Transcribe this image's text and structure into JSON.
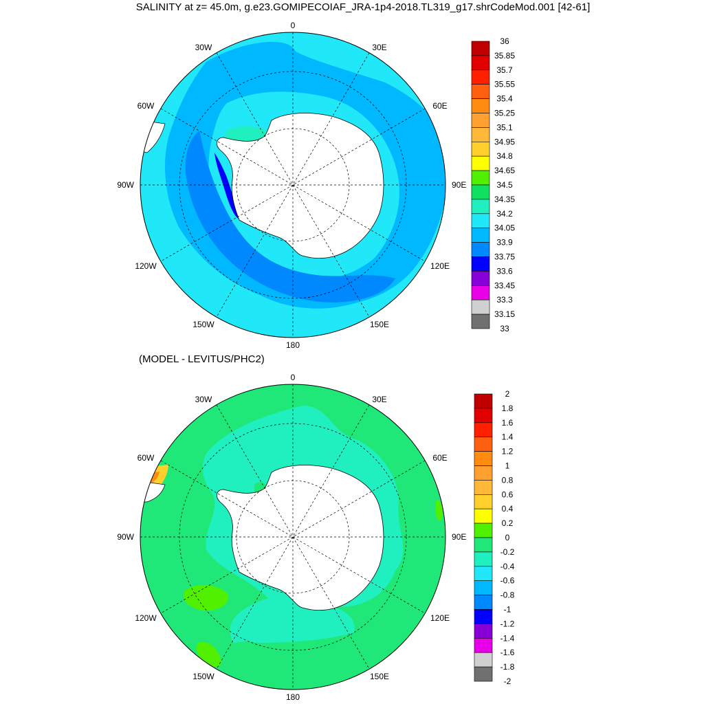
{
  "title": "SALINITY at z=  45.0m, g.e23.GOMIPECOIAF_JRA-1p4-2018.TL319_g17.shrCodeMod.001 [42-61]",
  "subtitle": "(MODEL - LEVITUS/PHC2)",
  "projection": "south polar stereographic",
  "longitude_labels": {
    "top": "0",
    "bottom": "180",
    "left": "90W",
    "right": "90E",
    "upper_left_outer": "60W",
    "upper_left_inner": "30W",
    "upper_right_inner": "30E",
    "upper_right_outer": "60E",
    "lower_left_outer": "120W",
    "lower_left_inner": "150W",
    "lower_right_inner": "150E",
    "lower_right_outer": "120E"
  },
  "colors": {
    "land": "#ffffff",
    "grid": "#000000",
    "outline": "#000000"
  },
  "top_map": {
    "dominant_level": "33.9 to 34.2",
    "colorbar": {
      "labels": [
        "36",
        "35.85",
        "35.7",
        "35.55",
        "35.4",
        "35.25",
        "35.1",
        "34.95",
        "34.8",
        "34.65",
        "34.5",
        "34.35",
        "34.2",
        "34.05",
        "33.9",
        "33.75",
        "33.6",
        "33.45",
        "33.3",
        "33.15",
        "33"
      ],
      "colors": [
        "#c00000",
        "#e00000",
        "#ff2000",
        "#ff6010",
        "#ff8c10",
        "#ffa030",
        "#ffb838",
        "#ffd02c",
        "#ffff00",
        "#50f000",
        "#10e060",
        "#20f0c0",
        "#20e8f8",
        "#00b8ff",
        "#0088ff",
        "#0000ff",
        "#8800d8",
        "#e800e8",
        "#d0d0d0",
        "#707070"
      ]
    }
  },
  "bottom_map": {
    "dominant_level": "0 to 0.2",
    "colorbar": {
      "labels": [
        "2",
        "1.8",
        "1.6",
        "1.4",
        "1.2",
        "1",
        "0.8",
        "0.6",
        "0.4",
        "0.2",
        "0",
        "-0.2",
        "-0.4",
        "-0.6",
        "-0.8",
        "-1",
        "-1.2",
        "-1.4",
        "-1.6",
        "-1.8",
        "-2"
      ],
      "colors": [
        "#c00000",
        "#e00000",
        "#ff2000",
        "#ff6010",
        "#ff8c10",
        "#ffa030",
        "#ffb838",
        "#ffd02c",
        "#ffff00",
        "#50f000",
        "#20e878",
        "#20f0c0",
        "#20e8f8",
        "#00b8ff",
        "#0088ff",
        "#0000ff",
        "#8800d8",
        "#e800e8",
        "#d0d0d0",
        "#707070"
      ]
    }
  }
}
